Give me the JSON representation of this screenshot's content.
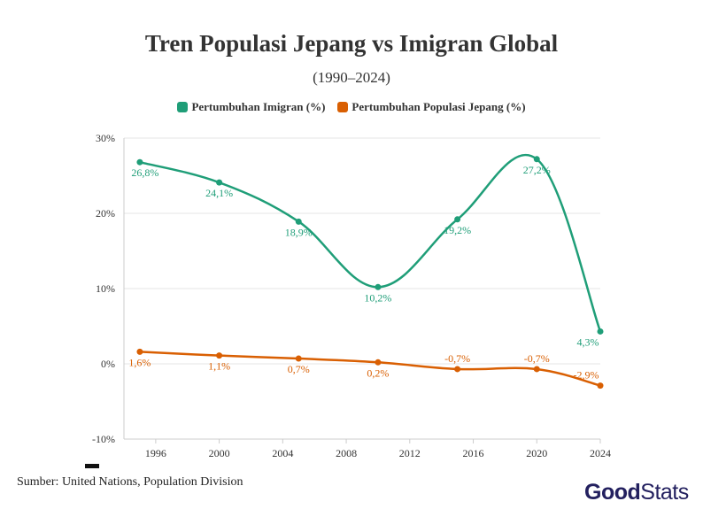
{
  "chart_data": {
    "type": "line",
    "title": "Tren Populasi Jepang vs Imigran Global",
    "subtitle": "(1990–2024)",
    "x": [
      1995,
      2000,
      2005,
      2010,
      2015,
      2020,
      2024
    ],
    "series": [
      {
        "name": "Pertumbuhan Imigran (%)",
        "color": "#1f9e78",
        "values": [
          26.8,
          24.1,
          18.9,
          10.2,
          19.2,
          27.2,
          4.3
        ],
        "labels": [
          "26,8%",
          "24,1%",
          "18,9%",
          "10,2%",
          "19,2%",
          "27,2%",
          "4,3%"
        ]
      },
      {
        "name": "Pertumbuhan Populasi Jepang (%)",
        "color": "#d95f02",
        "values": [
          1.6,
          1.1,
          0.7,
          0.2,
          -0.7,
          -0.7,
          -2.9
        ],
        "labels": [
          "1,6%",
          "1,1%",
          "0,7%",
          "0,2%",
          "-0,7%",
          "-0,7%",
          "-2,9%"
        ]
      }
    ],
    "xticks": [
      1996,
      2000,
      2004,
      2008,
      2012,
      2016,
      2020,
      2024
    ],
    "yticks": [
      -10,
      0,
      10,
      20,
      30
    ],
    "ytick_labels": [
      "-10%",
      "0%",
      "10%",
      "20%",
      "30%"
    ],
    "xlim": [
      1994,
      2024
    ],
    "ylim": [
      -10,
      30
    ],
    "grid": true,
    "legend_position": "top"
  },
  "source": "Sumber: United Nations, Population Division",
  "logo": {
    "good": "Good",
    "stats": "Stats"
  }
}
